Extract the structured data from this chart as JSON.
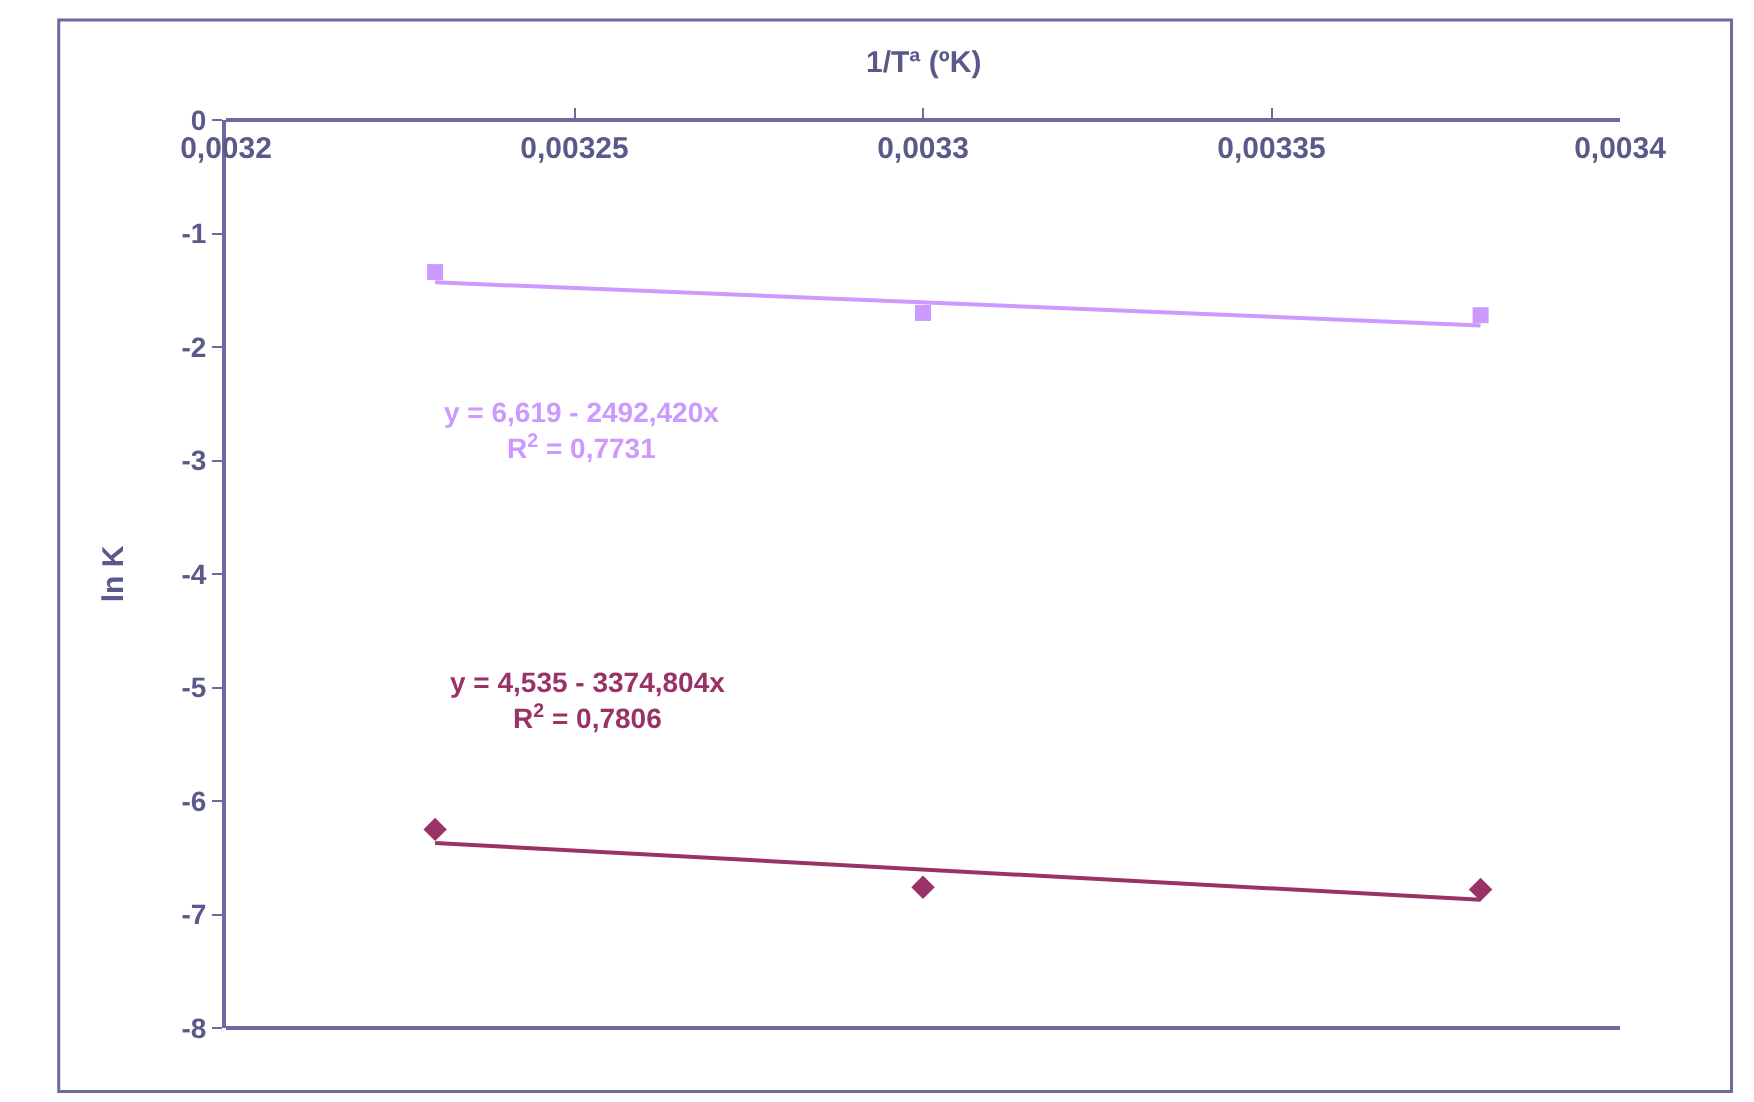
{
  "chart_data": {
    "type": "scatter",
    "xlabel": "1/Tª (ºK)",
    "ylabel": "ln K",
    "xlim": [
      0.0032,
      0.0034
    ],
    "ylim": [
      -8,
      0
    ],
    "xticks": [
      {
        "value": 0.0032,
        "label": "0,0032"
      },
      {
        "value": 0.00325,
        "label": "0,00325"
      },
      {
        "value": 0.0033,
        "label": "0,0033"
      },
      {
        "value": 0.00335,
        "label": "0,00335"
      },
      {
        "value": 0.0034,
        "label": "0,0034"
      }
    ],
    "yticks": [
      0,
      -1,
      -2,
      -3,
      -4,
      -5,
      -6,
      -7,
      -8
    ],
    "series": [
      {
        "marker": "square",
        "color": "#cc99ff",
        "x": [
          0.00323,
          0.0033,
          0.00338
        ],
        "values": [
          -1.34,
          -1.7,
          -1.72
        ]
      },
      {
        "type": "line",
        "marker": "none",
        "color": "#cc99ff",
        "x": [
          0.00323,
          0.00338
        ],
        "values": [
          -1.43,
          -1.81
        ]
      },
      {
        "marker": "diamond",
        "color": "#993366",
        "x": [
          0.00323,
          0.0033,
          0.00338
        ],
        "values": [
          -6.25,
          -6.76,
          -6.78
        ]
      },
      {
        "type": "line",
        "marker": "none",
        "color": "#993366",
        "x": [
          0.00323,
          0.00338
        ],
        "values": [
          -6.37,
          -6.87
        ]
      }
    ],
    "annotations": [
      "y = 6,619 - 2492,420x\nR$^{2}$ = 0,7731",
      "y = 4,535 - 3374,804x\nR$^{2}$ = 0,7806"
    ]
  }
}
